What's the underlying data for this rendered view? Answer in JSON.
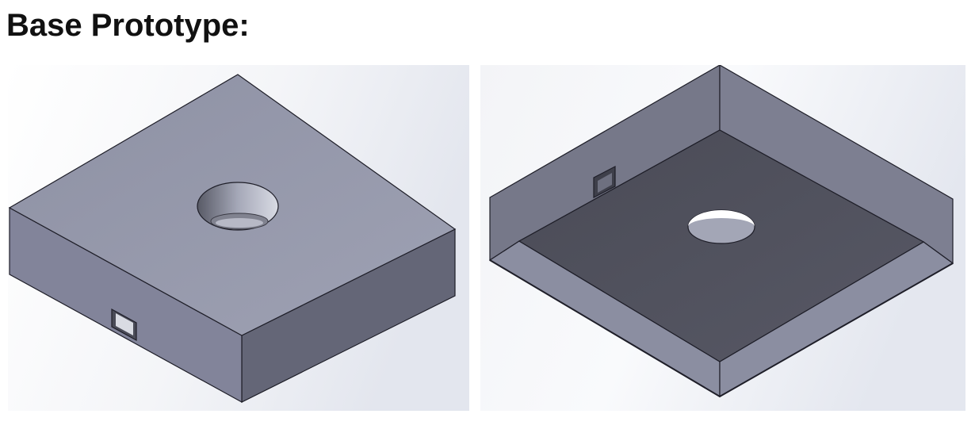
{
  "page": {
    "title": "Base Prototype:"
  },
  "views": [
    {
      "name": "top-isometric-view"
    },
    {
      "name": "underside-isometric-view"
    }
  ],
  "colors": {
    "background_light": "#ffffff",
    "background_tint": "#e3e6ee",
    "top_face": "#9699ab",
    "left_face": "#82849a",
    "right_face": "#646677",
    "edge": "#1e1e28",
    "inner_floor": "#50515d",
    "inner_wall_light": "#8b8ea1",
    "inner_wall_dark": "#767889"
  }
}
